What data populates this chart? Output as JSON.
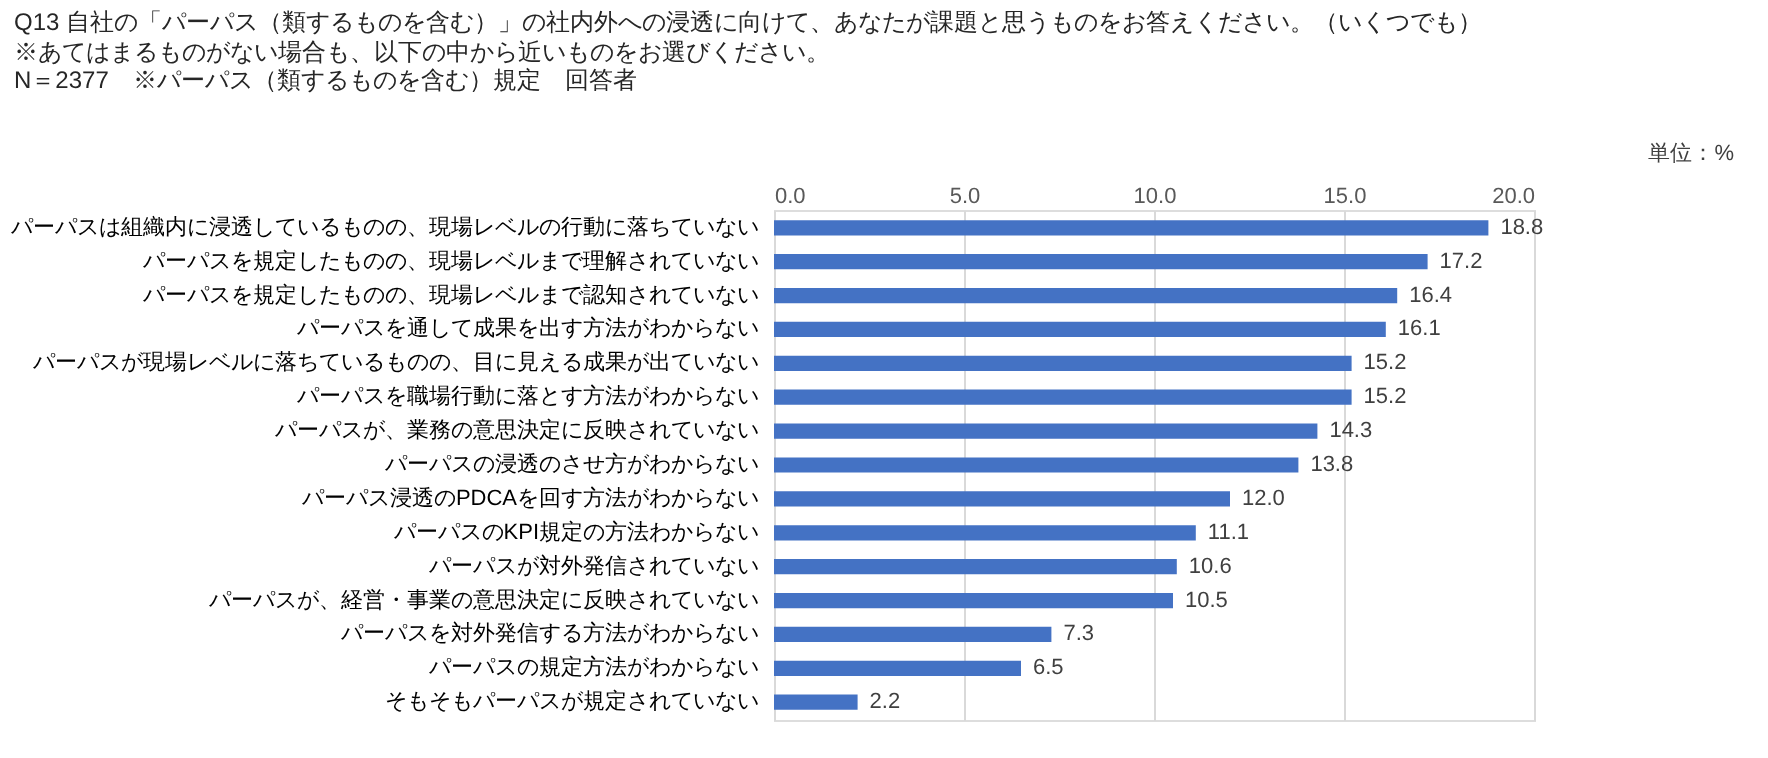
{
  "chart_data": {
    "type": "bar",
    "orientation": "horizontal",
    "title": "Q13 自社の「パーパス（類するものを含む）」の社内外への浸透に向けて、あなたが課題と思うものをお答えください。（いくつでも）",
    "subtitle": "※あてはまるものがない場合も、以下の中から近いものをお選びください。",
    "annotations": [
      "N＝2377　※パーパス（類するものを含む）規定　回答者",
      "単位：%"
    ],
    "categories": [
      "パーパスは組織内に浸透しているものの、現場レベルの行動に落ちていない",
      "パーパスを規定したものの、現場レベルまで理解されていない",
      "パーパスを規定したものの、現場レベルまで認知されていない",
      "パーパスを通して成果を出す方法がわからない",
      "パーパスが現場レベルに落ちているものの、目に見える成果が出ていない",
      "パーパスを職場行動に落とす方法がわからない",
      "パーパスが、業務の意思決定に反映されていない",
      "パーパスの浸透のさせ方がわからない",
      "パーパス浸透のPDCAを回す方法がわからない",
      "パーパスのKPI規定の方法わからない",
      "パーパスが対外発信されていない",
      "パーパスが、経営・事業の意思決定に反映されていない",
      "パーパスを対外発信する方法がわからない",
      "パーパスの規定方法がわからない",
      "そもそもパーパスが規定されていない"
    ],
    "values": [
      18.8,
      17.2,
      16.4,
      16.1,
      15.2,
      15.2,
      14.3,
      13.8,
      12.0,
      11.1,
      10.6,
      10.5,
      7.3,
      6.5,
      2.2
    ],
    "value_labels": [
      "18.8",
      "17.2",
      "16.4",
      "16.1",
      "15.2",
      "15.2",
      "14.3",
      "13.8",
      "12.0",
      "11.1",
      "10.6",
      "10.5",
      "7.3",
      "6.5",
      "2.2"
    ],
    "color": "#4472c4",
    "xlim": [
      0,
      20
    ],
    "xticks": [
      {
        "value": 0,
        "label": "0.0"
      },
      {
        "value": 5,
        "label": "5.0"
      },
      {
        "value": 10,
        "label": "10.0"
      },
      {
        "value": 15,
        "label": "15.0"
      },
      {
        "value": 20,
        "label": "20.0"
      }
    ],
    "grid": "x"
  }
}
